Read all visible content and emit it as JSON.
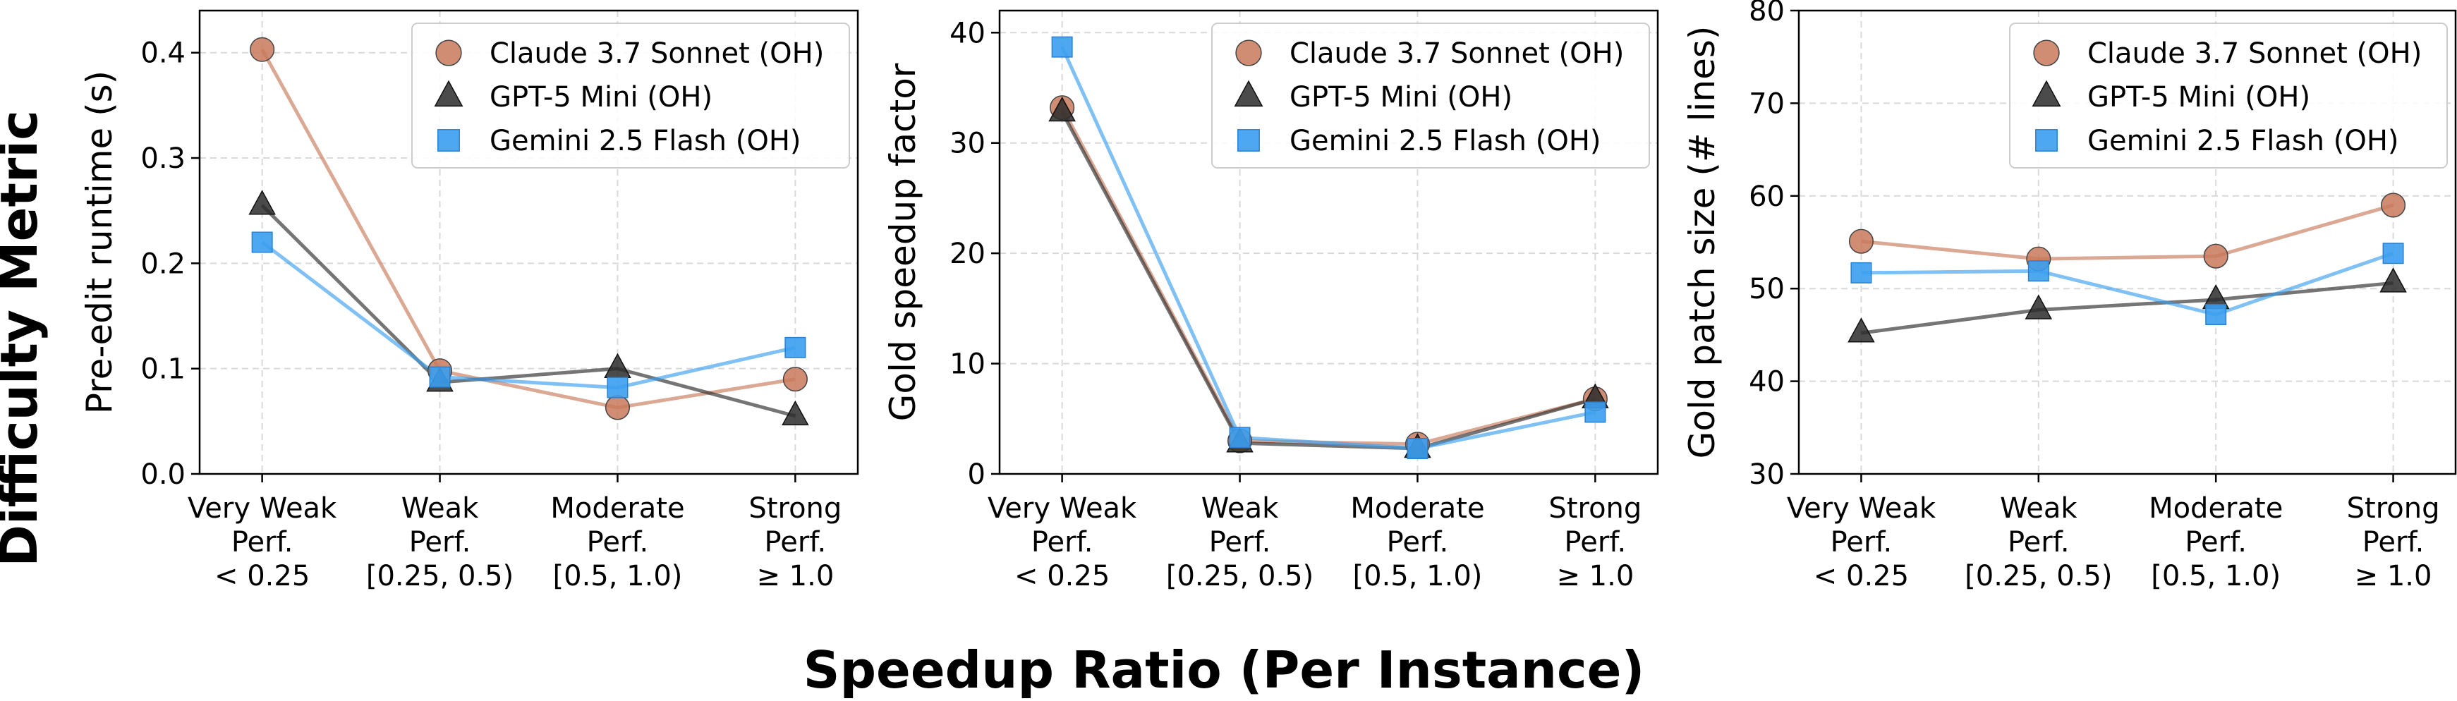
{
  "figure": {
    "supylabel": "Difficulty Metric",
    "supxlabel": "Speedup Ratio (Per Instance)"
  },
  "chart_data": [
    {
      "type": "line",
      "categories": [
        "Very Weak\nPerf.\n< 0.25",
        "Weak\nPerf.\n[0.25, 0.5)",
        "Moderate\nPerf.\n[0.5, 1.0)",
        "Strong\nPerf.\n≥ 1.0"
      ],
      "ylabel": "Pre-edit runtime (s)",
      "ylim": [
        0,
        0.44
      ],
      "yticks": [
        0.0,
        0.1,
        0.2,
        0.3,
        0.4
      ],
      "yticklabels": [
        "0.0",
        "0.1",
        "0.2",
        "0.3",
        "0.4"
      ],
      "grid": true,
      "legend": "top-right",
      "series": [
        {
          "name": "Claude 3.7 Sonnet (OH)",
          "marker": "circle",
          "color": "#c8795a",
          "values": [
            0.403,
            0.098,
            0.063,
            0.09
          ]
        },
        {
          "name": "GPT-5 Mini (OH)",
          "marker": "triangle",
          "color": "#2b2b2b",
          "values": [
            0.255,
            0.087,
            0.1,
            0.055
          ]
        },
        {
          "name": "Gemini 2.5 Flash (OH)",
          "marker": "square",
          "color": "#3b9ef0",
          "values": [
            0.22,
            0.092,
            0.082,
            0.12
          ]
        }
      ]
    },
    {
      "type": "line",
      "categories": [
        "Very Weak\nPerf.\n< 0.25",
        "Weak\nPerf.\n[0.25, 0.5)",
        "Moderate\nPerf.\n[0.5, 1.0)",
        "Strong\nPerf.\n≥ 1.0"
      ],
      "ylabel": "Gold speedup factor",
      "ylim": [
        0,
        42
      ],
      "yticks": [
        0,
        10,
        20,
        30,
        40
      ],
      "yticklabels": [
        "0",
        "10",
        "20",
        "30",
        "40"
      ],
      "grid": true,
      "legend": "top-right",
      "series": [
        {
          "name": "Claude 3.7 Sonnet (OH)",
          "marker": "circle",
          "color": "#c8795a",
          "values": [
            33.2,
            3.0,
            2.7,
            6.8
          ]
        },
        {
          "name": "GPT-5 Mini (OH)",
          "marker": "triangle",
          "color": "#2b2b2b",
          "values": [
            32.8,
            2.8,
            2.3,
            6.8
          ]
        },
        {
          "name": "Gemini 2.5 Flash (OH)",
          "marker": "square",
          "color": "#3b9ef0",
          "values": [
            38.7,
            3.3,
            2.3,
            5.6
          ]
        }
      ]
    },
    {
      "type": "line",
      "categories": [
        "Very Weak\nPerf.\n< 0.25",
        "Weak\nPerf.\n[0.25, 0.5)",
        "Moderate\nPerf.\n[0.5, 1.0)",
        "Strong\nPerf.\n≥ 1.0"
      ],
      "ylabel": "Gold patch size (# lines)",
      "ylim": [
        30,
        80
      ],
      "yticks": [
        30,
        40,
        50,
        60,
        70,
        80
      ],
      "yticklabels": [
        "30",
        "40",
        "50",
        "60",
        "70",
        "80"
      ],
      "grid": true,
      "legend": "top-right",
      "series": [
        {
          "name": "Claude 3.7 Sonnet (OH)",
          "marker": "circle",
          "color": "#c8795a",
          "values": [
            55.1,
            53.2,
            53.5,
            59.0
          ]
        },
        {
          "name": "GPT-5 Mini (OH)",
          "marker": "triangle",
          "color": "#2b2b2b",
          "values": [
            45.2,
            47.7,
            48.8,
            50.6
          ]
        },
        {
          "name": "Gemini 2.5 Flash (OH)",
          "marker": "square",
          "color": "#3b9ef0",
          "values": [
            51.7,
            51.9,
            47.2,
            53.8
          ]
        }
      ]
    }
  ]
}
